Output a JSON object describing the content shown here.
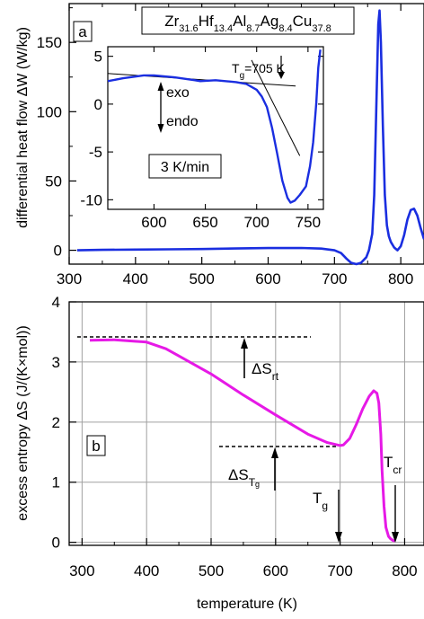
{
  "figure": {
    "composition_label": {
      "parts": [
        {
          "text": "Zr",
          "sub": "31.6"
        },
        {
          "text": "Hf",
          "sub": "13.4"
        },
        {
          "text": "Al",
          "sub": "8.7"
        },
        {
          "text": "Ag",
          "sub": "8.4"
        },
        {
          "text": "Cu",
          "sub": "37.8"
        }
      ]
    },
    "x_axis_label": "temperature (K)"
  },
  "chart_data": [
    {
      "id": "a",
      "type": "line",
      "panel_label": "a",
      "ylabel": "differential heat flow ΔW (W/kg)",
      "xlabel": "",
      "xlim": [
        300,
        835
      ],
      "ylim": [
        -10,
        178
      ],
      "xticks": [
        300,
        400,
        500,
        600,
        700,
        800
      ],
      "yticks": [
        0,
        50,
        100,
        150
      ],
      "grid": false,
      "color": "#1a2ee0",
      "series": [
        {
          "x": [
            312,
            350,
            400,
            450,
            500,
            550,
            600,
            650,
            680,
            700,
            710,
            718,
            725,
            733,
            740,
            748,
            752,
            757,
            760,
            763,
            766,
            768,
            770,
            773,
            776,
            779,
            782,
            785,
            790,
            795,
            800,
            805,
            810,
            815,
            820,
            825,
            830,
            835
          ],
          "y": [
            0,
            0.3,
            0.5,
            0.7,
            0.9,
            1.3,
            1.6,
            1.7,
            1.2,
            0,
            -2,
            -6,
            -9,
            -10,
            -9,
            -5,
            0,
            12,
            40,
            100,
            163,
            173,
            150,
            90,
            40,
            18,
            10,
            6,
            2,
            0,
            3,
            11,
            22,
            29,
            30,
            25,
            16,
            8
          ]
        }
      ],
      "inset": {
        "type": "line",
        "xlim": [
          555,
          765
        ],
        "ylim": [
          -11,
          6
        ],
        "xticks": [
          600,
          650,
          700,
          750
        ],
        "yticks": [
          5,
          0,
          -5,
          -10
        ],
        "ytick_labels": [
          "5",
          "0",
          "-5",
          "-10"
        ],
        "x": [
          555,
          570,
          590,
          600,
          620,
          640,
          645,
          660,
          680,
          690,
          700,
          705,
          710,
          715,
          720,
          725,
          730,
          733,
          737,
          742,
          748,
          752,
          755,
          758,
          760,
          762
        ],
        "y": [
          2.4,
          2.7,
          3.0,
          3.0,
          2.8,
          2.5,
          2.4,
          2.5,
          2.3,
          2.1,
          1.5,
          0.8,
          -0.3,
          -2.5,
          -5.2,
          -8.0,
          -9.8,
          -10.3,
          -10.1,
          -9.5,
          -8.6,
          -6.5,
          -4.0,
          0,
          3.8,
          5.7
        ],
        "tangent_lines": [
          {
            "x": [
              555,
              738
            ],
            "y": [
              3.2,
              1.9
            ]
          },
          {
            "x": [
              695,
              742
            ],
            "y": [
              4.6,
              -5.4
            ]
          }
        ],
        "annotations": {
          "tg_label": {
            "text": "T",
            "sub": "g",
            "suffix": "=705 K"
          },
          "exo": "exo",
          "endo": "endo",
          "rate": "3 K/min"
        }
      }
    },
    {
      "id": "b",
      "type": "line",
      "panel_label": "b",
      "ylabel": "excess entropy ΔS (J/(K×mol))",
      "xlabel": "temperature (K)",
      "xlim": [
        280,
        830
      ],
      "ylim": [
        -0.05,
        4.0
      ],
      "xticks": [
        300,
        400,
        500,
        600,
        700,
        800
      ],
      "yticks": [
        0,
        1,
        2,
        3,
        4
      ],
      "grid": true,
      "color": "#e619e6",
      "series": [
        {
          "x": [
            312,
            350,
            400,
            430,
            450,
            500,
            550,
            600,
            650,
            680,
            700,
            705,
            715,
            725,
            735,
            745,
            752,
            757,
            760,
            763,
            765,
            768,
            771,
            775,
            778,
            782,
            785
          ],
          "y": [
            3.36,
            3.37,
            3.33,
            3.22,
            3.1,
            2.8,
            2.45,
            2.12,
            1.8,
            1.66,
            1.61,
            1.62,
            1.73,
            1.96,
            2.22,
            2.43,
            2.52,
            2.48,
            2.32,
            1.8,
            1.2,
            0.6,
            0.25,
            0.1,
            0.06,
            0.03,
            0.02
          ]
        }
      ],
      "annotations": {
        "dS_rt": {
          "text": "ΔS",
          "sub": "rt"
        },
        "dS_Tg": {
          "text": "ΔS",
          "sub": "T",
          "subsub": "g"
        },
        "T_cr": {
          "text": "T",
          "sub": "cr"
        },
        "T_g": {
          "text": "T",
          "sub": "g"
        }
      }
    }
  ]
}
